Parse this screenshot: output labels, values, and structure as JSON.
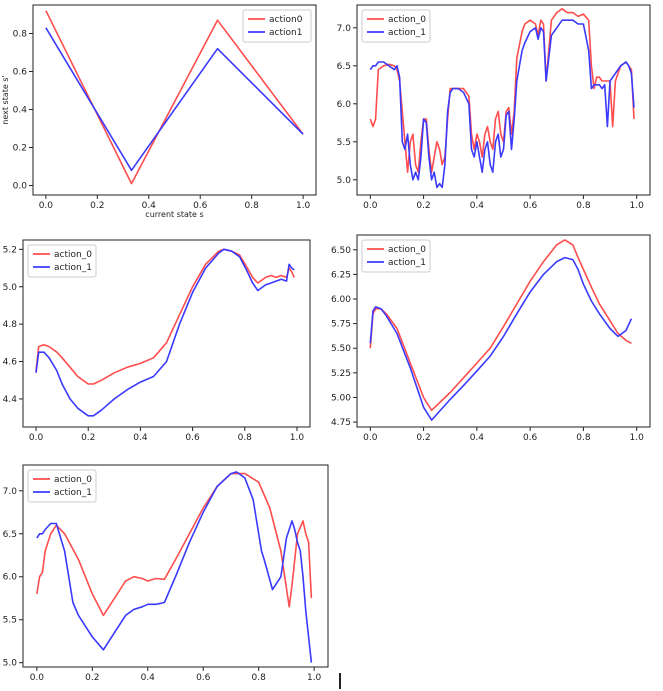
{
  "colors": {
    "action_0": "#ff4d4d",
    "action_1": "#3a3aff",
    "axis": "#222222",
    "legend_border": "#cccccc"
  },
  "chart_data": [
    {
      "type": "line",
      "xlabel": "current state s",
      "ylabel": "next state s'",
      "xlim": [
        -0.05,
        1.05
      ],
      "ylim": [
        -0.05,
        0.95
      ],
      "xticks": [
        0.0,
        0.2,
        0.4,
        0.6,
        0.8,
        1.0
      ],
      "xtick_labels": [
        "0.0",
        "0.2",
        "0.4",
        "0.6",
        "0.8",
        "1.0"
      ],
      "yticks": [
        0.0,
        0.2,
        0.4,
        0.6,
        0.8
      ],
      "ytick_labels": [
        "0.0",
        "0.2",
        "0.4",
        "0.6",
        "0.8"
      ],
      "legend_position": "top-right",
      "grid": false,
      "series": [
        {
          "name": "action0",
          "color": "#ff4d4d",
          "x": [
            0.0,
            0.333,
            0.667,
            1.0
          ],
          "y": [
            0.92,
            0.01,
            0.87,
            0.27
          ]
        },
        {
          "name": "action1",
          "color": "#3a3aff",
          "x": [
            0.0,
            0.333,
            0.667,
            1.0
          ],
          "y": [
            0.83,
            0.08,
            0.72,
            0.27
          ]
        }
      ]
    },
    {
      "type": "line",
      "xlabel": "",
      "ylabel": "",
      "xlim": [
        -0.05,
        1.05
      ],
      "ylim": [
        4.8,
        7.3
      ],
      "xticks": [
        0.0,
        0.2,
        0.4,
        0.6,
        0.8,
        1.0
      ],
      "xtick_labels": [
        "0.0",
        "0.2",
        "0.4",
        "0.6",
        "0.8",
        "1.0"
      ],
      "yticks": [
        5.0,
        5.5,
        6.0,
        6.5,
        7.0
      ],
      "ytick_labels": [
        "5.0",
        "5.5",
        "6.0",
        "6.5",
        "7.0"
      ],
      "legend_position": "top-left",
      "grid": false,
      "series": [
        {
          "name": "action_0",
          "color": "#ff4d4d",
          "x": [
            0.0,
            0.01,
            0.02,
            0.03,
            0.05,
            0.07,
            0.09,
            0.1,
            0.11,
            0.12,
            0.13,
            0.14,
            0.15,
            0.16,
            0.17,
            0.18,
            0.19,
            0.2,
            0.21,
            0.22,
            0.23,
            0.24,
            0.25,
            0.26,
            0.27,
            0.28,
            0.29,
            0.3,
            0.31,
            0.33,
            0.35,
            0.37,
            0.38,
            0.39,
            0.4,
            0.41,
            0.42,
            0.43,
            0.44,
            0.45,
            0.46,
            0.47,
            0.48,
            0.49,
            0.5,
            0.51,
            0.52,
            0.53,
            0.54,
            0.55,
            0.57,
            0.58,
            0.6,
            0.62,
            0.63,
            0.64,
            0.65,
            0.66,
            0.68,
            0.7,
            0.72,
            0.74,
            0.76,
            0.78,
            0.8,
            0.82,
            0.83,
            0.84,
            0.85,
            0.86,
            0.87,
            0.88,
            0.89,
            0.9,
            0.91,
            0.92,
            0.94,
            0.96,
            0.97,
            0.98,
            0.99
          ],
          "y": [
            5.8,
            5.7,
            5.8,
            6.45,
            6.5,
            6.52,
            6.5,
            6.45,
            6.3,
            5.9,
            5.5,
            5.1,
            5.5,
            5.6,
            5.2,
            5.1,
            5.5,
            5.8,
            5.8,
            5.4,
            5.1,
            5.3,
            5.5,
            5.4,
            5.2,
            5.3,
            5.8,
            6.2,
            6.2,
            6.2,
            6.2,
            6.1,
            5.6,
            5.4,
            5.6,
            5.5,
            5.3,
            5.6,
            5.7,
            5.5,
            5.4,
            5.8,
            5.9,
            5.6,
            5.5,
            5.9,
            5.95,
            5.6,
            5.9,
            6.6,
            6.95,
            7.05,
            7.1,
            7.05,
            6.9,
            7.1,
            7.05,
            6.3,
            7.1,
            7.2,
            7.25,
            7.2,
            7.2,
            7.15,
            7.18,
            7.1,
            6.5,
            6.2,
            6.35,
            6.35,
            6.3,
            6.3,
            6.3,
            6.3,
            5.7,
            6.3,
            6.5,
            6.55,
            6.5,
            6.45,
            5.8
          ]
        },
        {
          "name": "action_1",
          "color": "#3a3aff",
          "x": [
            0.0,
            0.01,
            0.02,
            0.03,
            0.05,
            0.07,
            0.09,
            0.1,
            0.11,
            0.12,
            0.13,
            0.14,
            0.15,
            0.16,
            0.17,
            0.18,
            0.19,
            0.2,
            0.21,
            0.22,
            0.23,
            0.24,
            0.25,
            0.26,
            0.27,
            0.28,
            0.29,
            0.3,
            0.31,
            0.33,
            0.35,
            0.37,
            0.38,
            0.39,
            0.4,
            0.41,
            0.42,
            0.43,
            0.44,
            0.45,
            0.46,
            0.47,
            0.48,
            0.49,
            0.5,
            0.51,
            0.52,
            0.53,
            0.54,
            0.55,
            0.57,
            0.58,
            0.6,
            0.62,
            0.63,
            0.64,
            0.65,
            0.66,
            0.68,
            0.7,
            0.72,
            0.74,
            0.76,
            0.78,
            0.8,
            0.82,
            0.83,
            0.84,
            0.85,
            0.86,
            0.87,
            0.88,
            0.89,
            0.9,
            0.91,
            0.92,
            0.94,
            0.96,
            0.97,
            0.98,
            0.99
          ],
          "y": [
            6.45,
            6.5,
            6.5,
            6.55,
            6.55,
            6.5,
            6.45,
            6.5,
            6.35,
            5.5,
            5.4,
            5.6,
            5.2,
            5.0,
            5.1,
            5.0,
            5.3,
            5.8,
            5.75,
            5.3,
            5.0,
            5.1,
            4.9,
            4.95,
            4.9,
            5.2,
            5.9,
            6.15,
            6.2,
            6.2,
            6.15,
            6.0,
            5.4,
            5.3,
            5.5,
            5.3,
            5.1,
            5.4,
            5.5,
            5.2,
            5.1,
            5.5,
            5.6,
            5.3,
            5.4,
            5.85,
            5.9,
            5.4,
            5.8,
            6.3,
            6.7,
            6.8,
            6.95,
            7.0,
            6.85,
            7.0,
            6.95,
            6.3,
            6.9,
            7.0,
            7.1,
            7.1,
            7.1,
            7.05,
            7.05,
            6.7,
            6.2,
            6.25,
            6.25,
            6.25,
            6.2,
            6.25,
            5.7,
            6.3,
            6.35,
            6.4,
            6.5,
            6.55,
            6.5,
            6.4,
            5.95
          ]
        }
      ]
    },
    {
      "type": "line",
      "xlabel": "",
      "ylabel": "",
      "xlim": [
        -0.05,
        1.05
      ],
      "ylim": [
        4.25,
        5.25
      ],
      "xticks": [
        0.0,
        0.2,
        0.4,
        0.6,
        0.8,
        1.0
      ],
      "xtick_labels": [
        "0.0",
        "0.2",
        "0.4",
        "0.6",
        "0.8",
        "1.0"
      ],
      "yticks": [
        4.4,
        4.6,
        4.8,
        5.0,
        5.2
      ],
      "ytick_labels": [
        "4.4",
        "4.6",
        "4.8",
        "5.0",
        "5.2"
      ],
      "legend_position": "top-left",
      "grid": false,
      "series": [
        {
          "name": "action_0",
          "color": "#ff4d4d",
          "x": [
            0.0,
            0.01,
            0.03,
            0.05,
            0.08,
            0.1,
            0.13,
            0.16,
            0.2,
            0.22,
            0.25,
            0.3,
            0.35,
            0.4,
            0.45,
            0.5,
            0.55,
            0.6,
            0.65,
            0.7,
            0.72,
            0.75,
            0.78,
            0.81,
            0.83,
            0.85,
            0.88,
            0.9,
            0.92,
            0.94,
            0.96,
            0.97,
            0.98,
            0.99
          ],
          "y": [
            4.55,
            4.68,
            4.69,
            4.68,
            4.65,
            4.62,
            4.57,
            4.52,
            4.48,
            4.48,
            4.5,
            4.54,
            4.57,
            4.59,
            4.62,
            4.7,
            4.85,
            5.0,
            5.12,
            5.19,
            5.2,
            5.19,
            5.17,
            5.1,
            5.05,
            5.02,
            5.05,
            5.06,
            5.05,
            5.06,
            5.05,
            5.1,
            5.08,
            5.05
          ]
        },
        {
          "name": "action_1",
          "color": "#3a3aff",
          "x": [
            0.0,
            0.01,
            0.03,
            0.05,
            0.08,
            0.1,
            0.13,
            0.16,
            0.2,
            0.22,
            0.25,
            0.3,
            0.35,
            0.4,
            0.45,
            0.5,
            0.55,
            0.6,
            0.65,
            0.7,
            0.72,
            0.75,
            0.78,
            0.81,
            0.83,
            0.85,
            0.88,
            0.9,
            0.92,
            0.94,
            0.96,
            0.97,
            0.98,
            0.99
          ],
          "y": [
            4.54,
            4.65,
            4.65,
            4.62,
            4.55,
            4.48,
            4.4,
            4.35,
            4.31,
            4.31,
            4.34,
            4.4,
            4.45,
            4.49,
            4.52,
            4.6,
            4.8,
            4.97,
            5.1,
            5.18,
            5.2,
            5.19,
            5.16,
            5.08,
            5.02,
            4.98,
            5.01,
            5.02,
            5.03,
            5.04,
            5.03,
            5.12,
            5.1,
            5.09
          ]
        }
      ]
    },
    {
      "type": "line",
      "xlabel": "",
      "ylabel": "",
      "xlim": [
        -0.05,
        1.05
      ],
      "ylim": [
        4.7,
        6.65
      ],
      "xticks": [
        0.0,
        0.2,
        0.4,
        0.6,
        0.8,
        1.0
      ],
      "xtick_labels": [
        "0.0",
        "0.2",
        "0.4",
        "0.6",
        "0.8",
        "1.0"
      ],
      "yticks": [
        4.75,
        5.0,
        5.25,
        5.5,
        5.75,
        6.0,
        6.25,
        6.5
      ],
      "ytick_labels": [
        "4.75",
        "5.00",
        "5.25",
        "5.50",
        "5.75",
        "6.00",
        "6.25",
        "6.50"
      ],
      "legend_position": "top-left",
      "grid": false,
      "series": [
        {
          "name": "action_0",
          "color": "#ff4d4d",
          "x": [
            0.0,
            0.01,
            0.02,
            0.04,
            0.06,
            0.1,
            0.15,
            0.2,
            0.23,
            0.3,
            0.35,
            0.4,
            0.45,
            0.5,
            0.55,
            0.6,
            0.65,
            0.7,
            0.73,
            0.76,
            0.78,
            0.8,
            0.83,
            0.86,
            0.9,
            0.93,
            0.96,
            0.98
          ],
          "y": [
            5.5,
            5.85,
            5.9,
            5.9,
            5.85,
            5.7,
            5.35,
            5.0,
            4.87,
            5.05,
            5.2,
            5.35,
            5.5,
            5.72,
            5.95,
            6.18,
            6.38,
            6.55,
            6.6,
            6.55,
            6.42,
            6.3,
            6.12,
            5.95,
            5.78,
            5.65,
            5.58,
            5.55
          ]
        },
        {
          "name": "action_1",
          "color": "#3a3aff",
          "x": [
            0.0,
            0.01,
            0.02,
            0.04,
            0.06,
            0.1,
            0.15,
            0.2,
            0.23,
            0.3,
            0.35,
            0.4,
            0.45,
            0.5,
            0.55,
            0.6,
            0.65,
            0.7,
            0.73,
            0.76,
            0.78,
            0.8,
            0.83,
            0.86,
            0.9,
            0.93,
            0.96,
            0.98
          ],
          "y": [
            5.55,
            5.88,
            5.92,
            5.9,
            5.83,
            5.65,
            5.3,
            4.9,
            4.77,
            4.98,
            5.12,
            5.27,
            5.42,
            5.62,
            5.85,
            6.07,
            6.25,
            6.38,
            6.42,
            6.4,
            6.3,
            6.15,
            5.98,
            5.85,
            5.7,
            5.62,
            5.68,
            5.8
          ]
        }
      ]
    },
    {
      "type": "line",
      "xlabel": "",
      "ylabel": "",
      "xlim": [
        -0.05,
        1.05
      ],
      "ylim": [
        4.95,
        7.3
      ],
      "xticks": [
        0.0,
        0.2,
        0.4,
        0.6,
        0.8,
        1.0
      ],
      "xtick_labels": [
        "0.0",
        "0.2",
        "0.4",
        "0.6",
        "0.8",
        "1.0"
      ],
      "yticks": [
        5.0,
        5.5,
        6.0,
        6.5,
        7.0
      ],
      "ytick_labels": [
        "5.0",
        "5.5",
        "6.0",
        "6.5",
        "7.0"
      ],
      "legend_position": "top-left",
      "grid": false,
      "series": [
        {
          "name": "action_0",
          "color": "#ff4d4d",
          "x": [
            0.0,
            0.01,
            0.02,
            0.03,
            0.05,
            0.07,
            0.1,
            0.15,
            0.2,
            0.24,
            0.28,
            0.32,
            0.35,
            0.38,
            0.4,
            0.43,
            0.46,
            0.5,
            0.55,
            0.6,
            0.65,
            0.7,
            0.75,
            0.8,
            0.84,
            0.88,
            0.91,
            0.92,
            0.94,
            0.96,
            0.97,
            0.98,
            0.99
          ],
          "y": [
            5.8,
            6.0,
            6.05,
            6.3,
            6.5,
            6.6,
            6.5,
            6.2,
            5.8,
            5.55,
            5.75,
            5.95,
            6.0,
            5.98,
            5.95,
            5.98,
            5.97,
            6.2,
            6.5,
            6.8,
            7.05,
            7.2,
            7.2,
            7.1,
            6.8,
            6.3,
            5.65,
            5.9,
            6.5,
            6.65,
            6.5,
            6.4,
            5.75
          ]
        },
        {
          "name": "action_1",
          "color": "#3a3aff",
          "x": [
            0.0,
            0.01,
            0.02,
            0.03,
            0.05,
            0.07,
            0.1,
            0.13,
            0.15,
            0.2,
            0.24,
            0.28,
            0.32,
            0.35,
            0.38,
            0.4,
            0.43,
            0.46,
            0.5,
            0.55,
            0.6,
            0.65,
            0.7,
            0.72,
            0.75,
            0.78,
            0.81,
            0.82,
            0.85,
            0.88,
            0.9,
            0.92,
            0.93,
            0.94,
            0.95,
            0.96,
            0.97,
            0.98,
            0.99
          ],
          "y": [
            6.45,
            6.5,
            6.5,
            6.55,
            6.62,
            6.62,
            6.3,
            5.7,
            5.55,
            5.3,
            5.15,
            5.35,
            5.55,
            5.62,
            5.65,
            5.68,
            5.68,
            5.7,
            6.0,
            6.4,
            6.75,
            7.05,
            7.2,
            7.22,
            7.15,
            6.9,
            6.3,
            6.2,
            5.85,
            6.0,
            6.45,
            6.65,
            6.55,
            6.4,
            6.3,
            6.0,
            5.6,
            5.3,
            5.0
          ]
        }
      ]
    }
  ]
}
